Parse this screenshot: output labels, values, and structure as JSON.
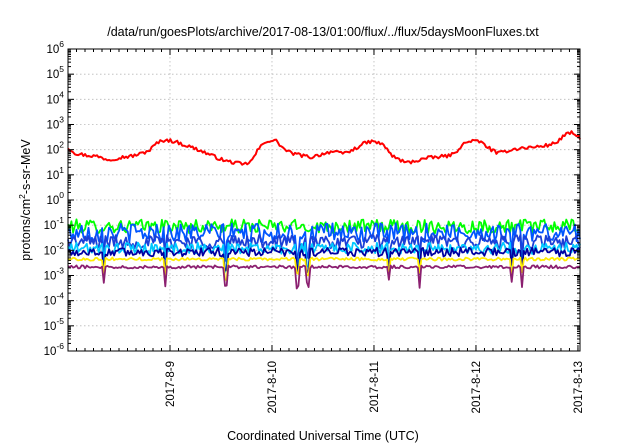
{
  "chart_data": {
    "type": "line",
    "title": "/data/run/goesPlots/archive/2017-08-13/01:00/flux/../flux/5daysMoonFluxes.txt",
    "xlabel": "Coordinated Universal Time (UTC)",
    "ylabel_parts": [
      "protons/cm",
      "2",
      "-s-sr-MeV"
    ],
    "y_scale": "log",
    "ylim": [
      1e-06,
      1000000.0
    ],
    "y_tick_exponents": [
      -6,
      -5,
      -4,
      -3,
      -2,
      -1,
      0,
      1,
      2,
      3,
      4,
      5,
      6
    ],
    "y_tick_base": "10",
    "xlim_days": [
      0,
      5.02
    ],
    "x_ticks": [
      {
        "day": 1,
        "label": "2017-8-9"
      },
      {
        "day": 2,
        "label": "2017-8-10"
      },
      {
        "day": 3,
        "label": "2017-8-11"
      },
      {
        "day": 4,
        "label": "2017-8-12"
      },
      {
        "day": 5,
        "label": "2017-8-13"
      }
    ],
    "grid": true,
    "series": [
      {
        "color": "#ff0000",
        "style": "high",
        "points": [
          [
            0.0,
            120
          ],
          [
            0.08,
            70
          ],
          [
            0.18,
            60
          ],
          [
            0.28,
            55
          ],
          [
            0.4,
            40
          ],
          [
            0.52,
            50
          ],
          [
            0.62,
            55
          ],
          [
            0.72,
            70
          ],
          [
            0.8,
            95
          ],
          [
            0.87,
            180
          ],
          [
            0.95,
            250
          ],
          [
            1.05,
            210
          ],
          [
            1.15,
            150
          ],
          [
            1.25,
            110
          ],
          [
            1.35,
            75
          ],
          [
            1.45,
            50
          ],
          [
            1.55,
            35
          ],
          [
            1.65,
            30
          ],
          [
            1.72,
            25
          ],
          [
            1.8,
            35
          ],
          [
            1.87,
            110
          ],
          [
            1.95,
            230
          ],
          [
            2.05,
            220
          ],
          [
            2.1,
            120
          ],
          [
            2.18,
            75
          ],
          [
            2.28,
            60
          ],
          [
            2.38,
            50
          ],
          [
            2.48,
            65
          ],
          [
            2.58,
            85
          ],
          [
            2.68,
            70
          ],
          [
            2.78,
            90
          ],
          [
            2.88,
            160
          ],
          [
            2.96,
            210
          ],
          [
            3.05,
            190
          ],
          [
            3.12,
            120
          ],
          [
            3.18,
            55
          ],
          [
            3.25,
            40
          ],
          [
            3.32,
            30
          ],
          [
            3.4,
            35
          ],
          [
            3.5,
            45
          ],
          [
            3.6,
            50
          ],
          [
            3.7,
            55
          ],
          [
            3.78,
            65
          ],
          [
            3.86,
            150
          ],
          [
            3.95,
            230
          ],
          [
            4.05,
            200
          ],
          [
            4.15,
            100
          ],
          [
            4.22,
            70
          ],
          [
            4.3,
            90
          ],
          [
            4.4,
            110
          ],
          [
            4.5,
            120
          ],
          [
            4.6,
            130
          ],
          [
            4.7,
            150
          ],
          [
            4.78,
            180
          ],
          [
            4.86,
            350
          ],
          [
            4.93,
            480
          ],
          [
            5.02,
            300
          ]
        ]
      },
      {
        "color": "#00ff00",
        "style": "noisy",
        "base": 0.09,
        "amp": 0.55,
        "dips": []
      },
      {
        "color": "#0055ff",
        "style": "noisy",
        "base": 0.05,
        "amp": 0.75,
        "dips": [
          0.35,
          0.95,
          1.55,
          2.25,
          2.35,
          3.15,
          3.45,
          4.35,
          4.45
        ]
      },
      {
        "color": "#1c3fd6",
        "style": "noisy",
        "base": 0.022,
        "amp": 0.55,
        "dips": [
          0.35,
          0.95,
          1.55,
          2.25,
          2.35,
          3.15,
          3.45,
          4.35,
          4.45
        ]
      },
      {
        "color": "#00c8ff",
        "style": "noisy",
        "base": 0.012,
        "amp": 0.45,
        "dips": [
          0.35,
          0.95,
          1.55,
          2.25,
          2.35,
          3.15,
          3.45,
          4.35,
          4.45
        ]
      },
      {
        "color": "#0000a0",
        "style": "noisy",
        "base": 0.0085,
        "amp": 0.35,
        "dips": [
          0.35,
          0.95,
          1.55,
          2.25,
          2.35,
          3.15,
          3.45,
          4.35,
          4.45
        ]
      },
      {
        "color": "#ffee00",
        "style": "noisy",
        "base": 0.0045,
        "amp": 0.12,
        "dips": [
          0.35,
          0.95,
          1.55,
          2.25,
          2.35,
          3.15,
          3.45,
          4.35,
          4.45
        ]
      },
      {
        "color": "#8b2070",
        "style": "noisy",
        "base": 0.0022,
        "amp": 0.12,
        "dips": [
          0.35,
          0.95,
          1.55,
          2.25,
          2.35,
          3.15,
          3.45,
          4.35,
          4.45
        ]
      }
    ]
  }
}
